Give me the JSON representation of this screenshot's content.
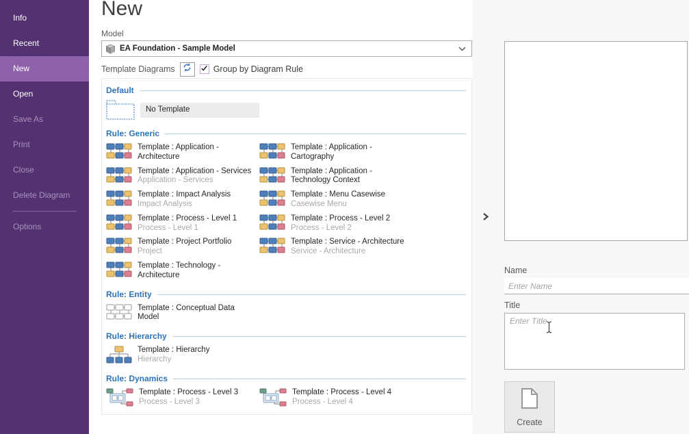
{
  "sidebar": {
    "items": [
      {
        "label": "Info",
        "state": "enabled"
      },
      {
        "label": "Recent",
        "state": "enabled"
      },
      {
        "label": "New",
        "state": "active"
      },
      {
        "label": "Open",
        "state": "enabled"
      },
      {
        "label": "Save As",
        "state": "disabled"
      },
      {
        "label": "Print",
        "state": "disabled"
      },
      {
        "label": "Close",
        "state": "disabled"
      },
      {
        "label": "Delete Diagram",
        "state": "disabled"
      },
      {
        "label": "Options",
        "state": "disabled",
        "divider_before": true
      }
    ]
  },
  "page": {
    "title": "New"
  },
  "model": {
    "label": "Model",
    "selected": "EA Foundation - Sample Model",
    "icon": "model-cube-icon",
    "dropdown_icon": "chevron-down-icon"
  },
  "template_bar": {
    "label": "Template Diagrams",
    "refresh_icon": "refresh-icon",
    "group_checkbox": {
      "label": "Group by Diagram Rule",
      "checked": true
    }
  },
  "template_sections": [
    {
      "title": "Default",
      "items": [
        {
          "title": "No Template",
          "subtitle": "",
          "icon": "no-template",
          "selected": true
        }
      ]
    },
    {
      "title": "Rule: Generic",
      "items": [
        {
          "title": "Template : Application -\nArchitecture",
          "subtitle": "",
          "icon": "generic"
        },
        {
          "title": "Template : Application -\nCartography",
          "subtitle": "",
          "icon": "generic"
        },
        {
          "title": "Template : Application - Services",
          "subtitle": "Application - Services",
          "icon": "generic"
        },
        {
          "title": "Template : Application -\nTechnology Context",
          "subtitle": "",
          "icon": "generic"
        },
        {
          "title": "Template : Impact Analysis",
          "subtitle": "Impact Analysis",
          "icon": "generic"
        },
        {
          "title": "Template : Menu Casewise",
          "subtitle": "Casewise Menu",
          "icon": "generic"
        },
        {
          "title": "Template : Process - Level 1",
          "subtitle": "Process - Level 1",
          "icon": "generic"
        },
        {
          "title": "Template : Process - Level 2",
          "subtitle": "Process - Level 2",
          "icon": "generic"
        },
        {
          "title": "Template : Project Portfolio",
          "subtitle": "Project",
          "icon": "generic"
        },
        {
          "title": "Template : Service - Architecture",
          "subtitle": "Service - Architecture",
          "icon": "generic"
        },
        {
          "title": "Template : Technology -\nArchitecture",
          "subtitle": "",
          "icon": "generic"
        }
      ]
    },
    {
      "title": "Rule: Entity",
      "items": [
        {
          "title": "Template : Conceptual Data\nModel",
          "subtitle": "",
          "icon": "entity"
        }
      ]
    },
    {
      "title": "Rule: Hierarchy",
      "items": [
        {
          "title": "Template : Hierarchy",
          "subtitle": "Hierarchy",
          "icon": "hierarchy"
        }
      ]
    },
    {
      "title": "Rule: Dynamics",
      "items": [
        {
          "title": "Template : Process - Level 3",
          "subtitle": "Process - Level 3",
          "icon": "dynamics"
        },
        {
          "title": "Template : Process - Level 4",
          "subtitle": "Process - Level 4",
          "icon": "dynamics"
        }
      ]
    }
  ],
  "preview_pane": {
    "expand_icon": "chevron-right-icon"
  },
  "form": {
    "name": {
      "label": "Name",
      "placeholder": "Enter Name",
      "value": ""
    },
    "title": {
      "label": "Title",
      "placeholder": "Enter Title",
      "value": ""
    },
    "create": {
      "label": "Create",
      "icon": "new-document-icon"
    }
  },
  "colors": {
    "sidebar_bg": "#543272",
    "sidebar_active_bg": "#8e62ab",
    "sidebar_disabled_text": "#a593b9",
    "section_header_blue": "#2e74b5",
    "section_line_blue": "#b9cde4",
    "refresh_arrow_blue": "#3f7fc1",
    "checkbox_border_purple": "#c9a3da",
    "selected_item_bg": "#ececec",
    "icon_blue": "#4e7fbb",
    "icon_yellow": "#e9c36f",
    "icon_pink": "#dd7f90",
    "icon_green": "#6fa08c"
  }
}
